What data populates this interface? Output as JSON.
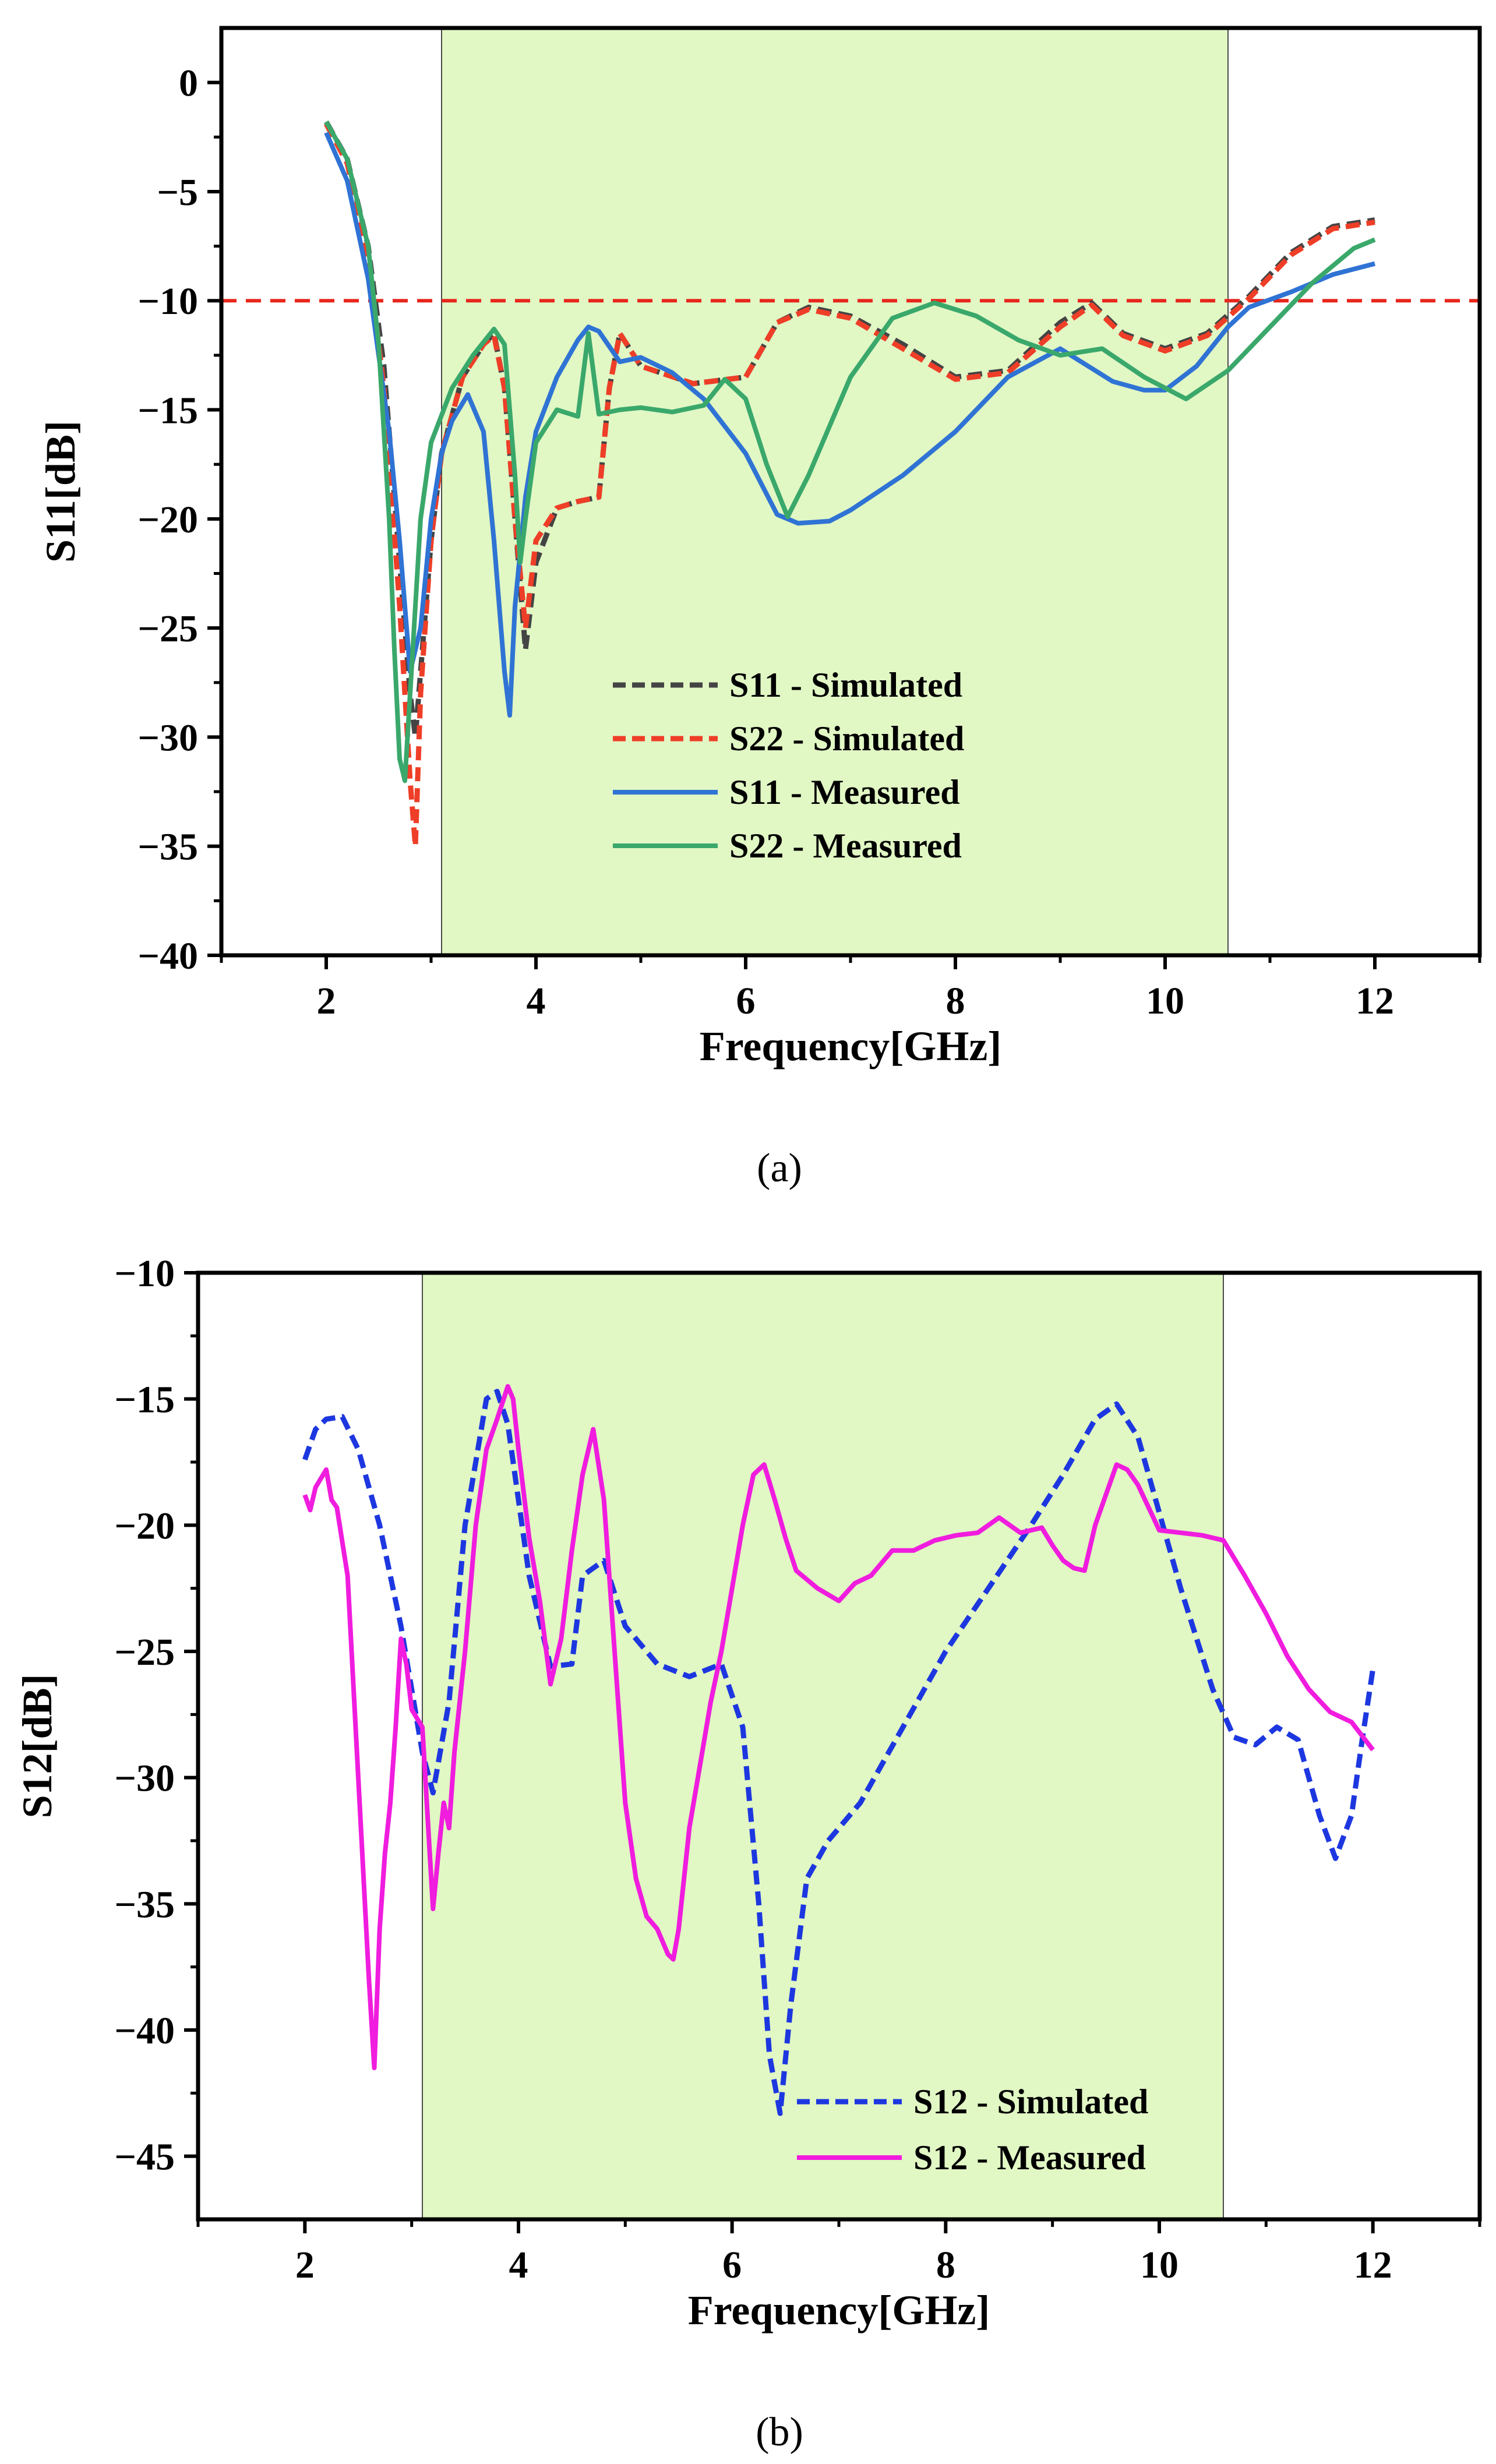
{
  "chart_data": [
    {
      "type": "line",
      "panel_label": "(a)",
      "xlabel": "Frequency[GHz]",
      "ylabel": "S11[dB]",
      "xlim": [
        1,
        13
      ],
      "ylim": [
        -40,
        2.5
      ],
      "x_ticks": [
        2,
        4,
        6,
        8,
        10,
        12
      ],
      "y_ticks": [
        0,
        -5,
        -10,
        -15,
        -20,
        -25,
        -30,
        -35,
        -40
      ],
      "x_tick_labels": [
        "2",
        "4",
        "6",
        "8",
        "10",
        "12"
      ],
      "y_tick_labels": [
        "0",
        "−5",
        "−10",
        "−15",
        "−20",
        "−25",
        "−30",
        "−35",
        "−40"
      ],
      "shaded_band": [
        3.1,
        10.6
      ],
      "band_color": "#e1f7c4",
      "reference_line": {
        "y": -10,
        "color": "#e8261c"
      },
      "legend_position": "center-right",
      "series": [
        {
          "name": "S11 - Simulated",
          "color": "#444444",
          "dash": true,
          "x": [
            2.0,
            2.2,
            2.4,
            2.55,
            2.7,
            2.8,
            2.85,
            2.9,
            3.0,
            3.1,
            3.3,
            3.5,
            3.6,
            3.7,
            3.8,
            3.9,
            4.0,
            4.2,
            4.4,
            4.6,
            4.7,
            4.8,
            5.0,
            5.5,
            6.0,
            6.3,
            6.6,
            7.0,
            7.5,
            8.0,
            8.5,
            9.0,
            9.3,
            9.6,
            10.0,
            10.4,
            10.8,
            11.2,
            11.6,
            12.0
          ],
          "y": [
            -1.8,
            -3.5,
            -7.5,
            -13,
            -22,
            -28,
            -30,
            -27,
            -21,
            -17,
            -13.5,
            -12,
            -11.5,
            -14,
            -20,
            -26,
            -22,
            -19.5,
            -19.2,
            -19,
            -14,
            -11.5,
            -13,
            -13.8,
            -13.5,
            -11,
            -10.3,
            -10.7,
            -12,
            -13.5,
            -13.2,
            -11,
            -10.1,
            -11.5,
            -12.2,
            -11.5,
            -9.8,
            -7.8,
            -6.6,
            -6.3
          ]
        },
        {
          "name": "S22 - Simulated",
          "color": "#ef3e27",
          "dash": true,
          "x": [
            2.0,
            2.2,
            2.4,
            2.55,
            2.7,
            2.8,
            2.85,
            2.9,
            3.0,
            3.1,
            3.3,
            3.5,
            3.6,
            3.7,
            3.8,
            3.9,
            4.0,
            4.2,
            4.4,
            4.6,
            4.7,
            4.8,
            5.0,
            5.5,
            6.0,
            6.3,
            6.6,
            7.0,
            7.5,
            8.0,
            8.5,
            9.0,
            9.3,
            9.6,
            10.0,
            10.4,
            10.8,
            11.2,
            11.6,
            12.0
          ],
          "y": [
            -1.9,
            -3.7,
            -8,
            -14,
            -24,
            -32,
            -35,
            -28,
            -21,
            -17,
            -13.5,
            -12,
            -11.6,
            -14,
            -20,
            -25,
            -21,
            -19.5,
            -19.2,
            -19,
            -14,
            -11.5,
            -13,
            -13.8,
            -13.5,
            -11,
            -10.4,
            -10.8,
            -12.2,
            -13.6,
            -13.3,
            -11.2,
            -10.2,
            -11.6,
            -12.3,
            -11.6,
            -9.9,
            -7.9,
            -6.7,
            -6.4
          ]
        },
        {
          "name": "S11 - Measured",
          "color": "#2f73d4",
          "dash": false,
          "x": [
            2.0,
            2.2,
            2.4,
            2.6,
            2.7,
            2.8,
            2.9,
            3.0,
            3.1,
            3.2,
            3.35,
            3.5,
            3.6,
            3.7,
            3.75,
            3.8,
            3.9,
            4.0,
            4.2,
            4.4,
            4.5,
            4.6,
            4.8,
            5.0,
            5.3,
            5.6,
            6.0,
            6.3,
            6.5,
            6.8,
            7.0,
            7.5,
            8.0,
            8.5,
            9.0,
            9.5,
            9.8,
            10.0,
            10.3,
            10.6,
            10.8,
            11.2,
            11.6,
            12.0
          ],
          "y": [
            -2.3,
            -4.5,
            -9,
            -16,
            -21,
            -27,
            -25,
            -20,
            -17,
            -15.5,
            -14.3,
            -16,
            -21,
            -27,
            -29,
            -24,
            -19,
            -16,
            -13.5,
            -11.8,
            -11.2,
            -11.4,
            -12.8,
            -12.6,
            -13.3,
            -14.5,
            -17,
            -19.8,
            -20.2,
            -20.1,
            -19.6,
            -18,
            -16,
            -13.5,
            -12.2,
            -13.7,
            -14.1,
            -14.1,
            -13,
            -11.2,
            -10.3,
            -9.6,
            -8.8,
            -8.3
          ]
        },
        {
          "name": "S22 - Measured",
          "color": "#3aa86b",
          "dash": false,
          "x": [
            2.0,
            2.2,
            2.4,
            2.5,
            2.6,
            2.65,
            2.7,
            2.75,
            2.8,
            2.9,
            3.0,
            3.2,
            3.4,
            3.6,
            3.7,
            3.8,
            3.85,
            3.9,
            4.0,
            4.2,
            4.4,
            4.5,
            4.6,
            4.8,
            5.0,
            5.3,
            5.6,
            5.8,
            6.0,
            6.2,
            6.4,
            6.6,
            7.0,
            7.4,
            7.8,
            8.2,
            8.6,
            9.0,
            9.4,
            9.8,
            10.2,
            10.6,
            11.0,
            11.4,
            11.8,
            12.0
          ],
          "y": [
            -1.8,
            -3.5,
            -7.5,
            -12,
            -20,
            -26,
            -31,
            -32,
            -28,
            -20,
            -16.5,
            -14,
            -12.5,
            -11.3,
            -12,
            -18,
            -22,
            -20,
            -16.5,
            -15,
            -15.3,
            -11.5,
            -15.2,
            -15,
            -14.9,
            -15.1,
            -14.8,
            -13.6,
            -14.5,
            -17.5,
            -19.9,
            -18,
            -13.5,
            -10.8,
            -10.1,
            -10.7,
            -11.8,
            -12.5,
            -12.2,
            -13.5,
            -14.5,
            -13.2,
            -11.2,
            -9.2,
            -7.6,
            -7.2
          ]
        }
      ]
    },
    {
      "type": "line",
      "panel_label": "(b)",
      "xlabel": "Frequency[GHz]",
      "ylabel": "S12[dB]",
      "xlim": [
        1,
        13
      ],
      "ylim": [
        -47.5,
        -10
      ],
      "x_ticks": [
        2,
        4,
        6,
        8,
        10,
        12
      ],
      "y_ticks": [
        -10,
        -15,
        -20,
        -25,
        -30,
        -35,
        -40,
        -45
      ],
      "x_tick_labels": [
        "2",
        "4",
        "6",
        "8",
        "10",
        "12"
      ],
      "y_tick_labels": [
        "−10",
        "−15",
        "−20",
        "−25",
        "−30",
        "−35",
        "−40",
        "−45"
      ],
      "shaded_band": [
        3.1,
        10.6
      ],
      "band_color": "#e1f7c4",
      "legend_position": "bottom-right",
      "series": [
        {
          "name": "S12 - Simulated",
          "color": "#1d37e0",
          "dash": true,
          "x": [
            2.0,
            2.1,
            2.2,
            2.35,
            2.5,
            2.7,
            2.9,
            3.1,
            3.2,
            3.35,
            3.5,
            3.7,
            3.8,
            3.9,
            4.1,
            4.3,
            4.5,
            4.6,
            4.8,
            5.0,
            5.3,
            5.6,
            5.9,
            6.1,
            6.25,
            6.35,
            6.45,
            6.55,
            6.7,
            6.9,
            7.2,
            7.6,
            8.0,
            8.4,
            8.8,
            9.1,
            9.4,
            9.6,
            9.8,
            10.0,
            10.2,
            10.5,
            10.7,
            10.9,
            11.1,
            11.3,
            11.5,
            11.65,
            11.8,
            11.9,
            12.0
          ],
          "y": [
            -17.4,
            -16.2,
            -15.8,
            -15.7,
            -17,
            -20,
            -24,
            -29,
            -30.6,
            -27,
            -20,
            -15,
            -14.7,
            -16,
            -22,
            -25.6,
            -25.5,
            -22,
            -21.4,
            -24,
            -25.5,
            -26,
            -25.5,
            -28,
            -35,
            -41,
            -43.3,
            -39,
            -34,
            -32.5,
            -31,
            -28,
            -25,
            -22.5,
            -20,
            -18,
            -15.8,
            -15.2,
            -16.5,
            -19.5,
            -22.5,
            -26.5,
            -28.4,
            -28.7,
            -28,
            -28.5,
            -31.5,
            -33.2,
            -31.5,
            -28.5,
            -25.7
          ]
        },
        {
          "name": "S12 - Measured",
          "color": "#f01cde",
          "dash": false,
          "x": [
            2.0,
            2.05,
            2.1,
            2.2,
            2.25,
            2.3,
            2.4,
            2.5,
            2.6,
            2.65,
            2.7,
            2.75,
            2.8,
            2.85,
            2.9,
            2.95,
            3.0,
            3.1,
            3.2,
            3.25,
            3.3,
            3.35,
            3.4,
            3.5,
            3.6,
            3.7,
            3.8,
            3.9,
            3.95,
            4.0,
            4.1,
            4.2,
            4.3,
            4.4,
            4.5,
            4.6,
            4.7,
            4.8,
            4.9,
            5.0,
            5.1,
            5.2,
            5.3,
            5.4,
            5.45,
            5.5,
            5.6,
            5.7,
            5.8,
            5.9,
            6.0,
            6.1,
            6.2,
            6.3,
            6.4,
            6.5,
            6.6,
            6.8,
            7.0,
            7.15,
            7.3,
            7.5,
            7.7,
            7.9,
            8.1,
            8.3,
            8.5,
            8.7,
            8.9,
            9.0,
            9.1,
            9.2,
            9.3,
            9.4,
            9.5,
            9.6,
            9.7,
            9.8,
            9.9,
            10.0,
            10.2,
            10.4,
            10.6,
            10.8,
            11.0,
            11.2,
            11.4,
            11.6,
            11.8,
            12.0
          ],
          "y": [
            -18.8,
            -19.4,
            -18.5,
            -17.8,
            -19,
            -19.3,
            -22,
            -30,
            -38,
            -41.5,
            -36,
            -33,
            -31,
            -28,
            -24.5,
            -25.5,
            -27.3,
            -28,
            -35.2,
            -33,
            -31,
            -32,
            -29,
            -25,
            -20,
            -17,
            -15.8,
            -14.5,
            -15,
            -17,
            -20.5,
            -23,
            -26.3,
            -24.5,
            -21,
            -18,
            -16.2,
            -19,
            -25,
            -31,
            -34,
            -35.5,
            -36,
            -37,
            -37.2,
            -36,
            -32,
            -29.5,
            -27,
            -25,
            -22.5,
            -20,
            -18,
            -17.6,
            -19,
            -20.5,
            -21.8,
            -22.5,
            -23,
            -22.3,
            -22,
            -21,
            -21,
            -20.6,
            -20.4,
            -20.3,
            -19.7,
            -20.3,
            -20.1,
            -20.8,
            -21.4,
            -21.7,
            -21.8,
            -20,
            -18.8,
            -17.6,
            -17.8,
            -18.4,
            -19.3,
            -20.2,
            -20.3,
            -20.4,
            -20.6,
            -22,
            -23.5,
            -25.2,
            -26.5,
            -27.4,
            -27.8,
            -28.9
          ]
        }
      ]
    }
  ]
}
